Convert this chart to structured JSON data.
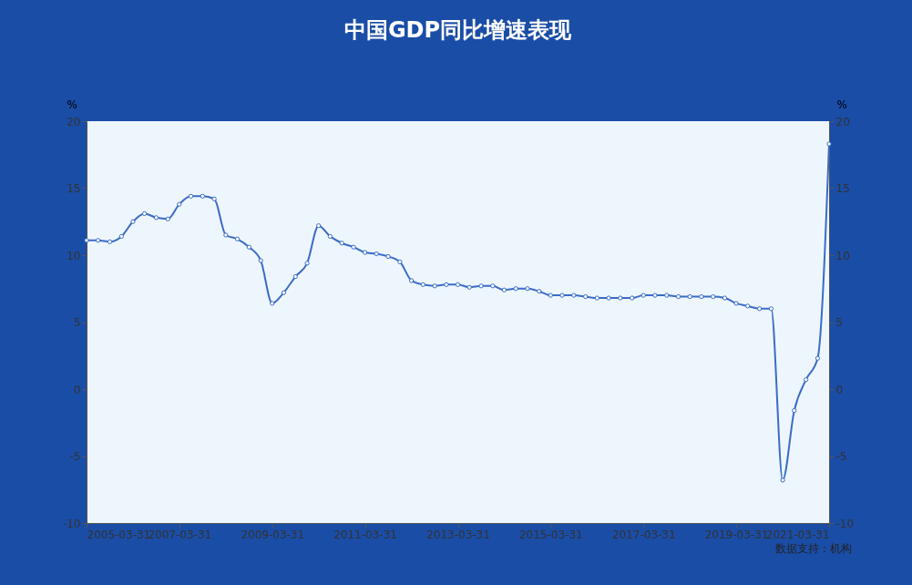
{
  "chart_data": {
    "type": "line",
    "title": "中国GDP同比增速表现",
    "ylabel": "%",
    "y2label": "%",
    "x": [
      "2005-03-31",
      "2005-06-30",
      "2005-09-30",
      "2005-12-31",
      "2006-03-31",
      "2006-06-30",
      "2006-09-30",
      "2006-12-31",
      "2007-03-31",
      "2007-06-30",
      "2007-09-30",
      "2007-12-31",
      "2008-03-31",
      "2008-06-30",
      "2008-09-30",
      "2008-12-31",
      "2009-03-31",
      "2009-06-30",
      "2009-09-30",
      "2009-12-31",
      "2010-03-31",
      "2010-06-30",
      "2010-09-30",
      "2010-12-31",
      "2011-03-31",
      "2011-06-30",
      "2011-09-30",
      "2011-12-31",
      "2012-03-31",
      "2012-06-30",
      "2012-09-30",
      "2012-12-31",
      "2013-03-31",
      "2013-06-30",
      "2013-09-30",
      "2013-12-31",
      "2014-03-31",
      "2014-06-30",
      "2014-09-30",
      "2014-12-31",
      "2015-03-31",
      "2015-06-30",
      "2015-09-30",
      "2015-12-31",
      "2016-03-31",
      "2016-06-30",
      "2016-09-30",
      "2016-12-31",
      "2017-03-31",
      "2017-06-30",
      "2017-09-30",
      "2017-12-31",
      "2018-03-31",
      "2018-06-30",
      "2018-09-30",
      "2018-12-31",
      "2019-03-31",
      "2019-06-30",
      "2019-09-30",
      "2019-12-31",
      "2020-03-31",
      "2020-06-30",
      "2020-09-30",
      "2020-12-31",
      "2021-03-31"
    ],
    "series": [
      {
        "color": "#3a6cc8",
        "values": [
          11.1,
          11.1,
          11.0,
          11.4,
          12.5,
          13.1,
          12.8,
          12.7,
          13.8,
          14.4,
          14.4,
          14.2,
          11.5,
          11.2,
          10.6,
          9.6,
          6.4,
          7.2,
          8.4,
          9.4,
          12.2,
          11.4,
          10.9,
          10.6,
          10.2,
          10.1,
          9.9,
          9.5,
          8.1,
          7.8,
          7.7,
          7.8,
          7.8,
          7.6,
          7.7,
          7.7,
          7.4,
          7.5,
          7.5,
          7.3,
          7.0,
          7.0,
          7.0,
          6.9,
          6.8,
          6.8,
          6.8,
          6.8,
          7.0,
          7.0,
          7.0,
          6.9,
          6.9,
          6.9,
          6.9,
          6.8,
          6.4,
          6.2,
          6.0,
          6.0,
          -6.8,
          -1.6,
          0.7,
          2.3,
          18.3
        ]
      }
    ],
    "xlim": [
      "2005-03-31",
      "2021-03-31"
    ],
    "xticks": [
      "2005-03-31",
      "2007-03-31",
      "2009-03-31",
      "2011-03-31",
      "2013-03-31",
      "2015-03-31",
      "2017-03-31",
      "2019-03-31",
      "2021-03-31"
    ],
    "ylim": [
      -10,
      20
    ],
    "yticks": [
      -10,
      -5,
      0,
      5,
      10,
      15,
      20
    ],
    "y2lim": [
      -10,
      20
    ],
    "y2ticks": [
      -10,
      -5,
      0,
      5,
      10,
      15,
      20
    ],
    "marker": "circle",
    "line_style": "solid",
    "grid": false,
    "annotations": [
      "数据支持：机构"
    ]
  }
}
